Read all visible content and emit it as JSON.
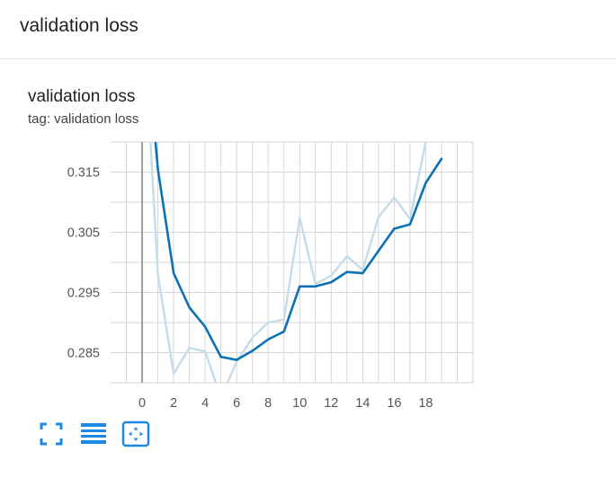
{
  "section": {
    "title": "validation loss"
  },
  "card": {
    "title": "validation loss",
    "tag": "tag: validation loss"
  },
  "toolbar": {
    "icons": [
      "fullscreen-icon",
      "data-table-icon",
      "fit-domain-icon"
    ],
    "accent_color": "#1e88e5"
  },
  "chart_data": {
    "type": "line",
    "title": "validation loss",
    "xlabel": "",
    "ylabel": "",
    "xlim": [
      -2,
      21
    ],
    "ylim": [
      0.28,
      0.32
    ],
    "x_ticks": [
      "0",
      "2",
      "4",
      "6",
      "8",
      "10",
      "12",
      "14",
      "16",
      "18"
    ],
    "y_ticks": [
      "0.315",
      "0.305",
      "0.295",
      "0.285"
    ],
    "grid": true,
    "series": [
      {
        "role": "raw",
        "color": "#c6dce8",
        "x": [
          0,
          1,
          2,
          3,
          4,
          5,
          6,
          7,
          8,
          9,
          10,
          11,
          12,
          13,
          14,
          15,
          16,
          17,
          18,
          19
        ],
        "y": [
          0.345,
          0.298,
          0.2815,
          0.2858,
          0.2852,
          0.2775,
          0.2835,
          0.2875,
          0.29,
          0.2905,
          0.3074,
          0.2964,
          0.2978,
          0.301,
          0.2988,
          0.3075,
          0.3108,
          0.3072,
          0.32,
          0.325
        ]
      },
      {
        "role": "smoothed",
        "color": "#0b72b5",
        "x": [
          0,
          1,
          2,
          3,
          4,
          5,
          6,
          7,
          8,
          9,
          10,
          11,
          12,
          13,
          14,
          15,
          16,
          17,
          18,
          19
        ],
        "y": [
          0.345,
          0.3155,
          0.2982,
          0.2925,
          0.2893,
          0.2843,
          0.2838,
          0.2853,
          0.2872,
          0.2885,
          0.296,
          0.296,
          0.2967,
          0.2984,
          0.2982,
          0.3019,
          0.3056,
          0.3063,
          0.3132,
          0.3172
        ]
      }
    ]
  }
}
